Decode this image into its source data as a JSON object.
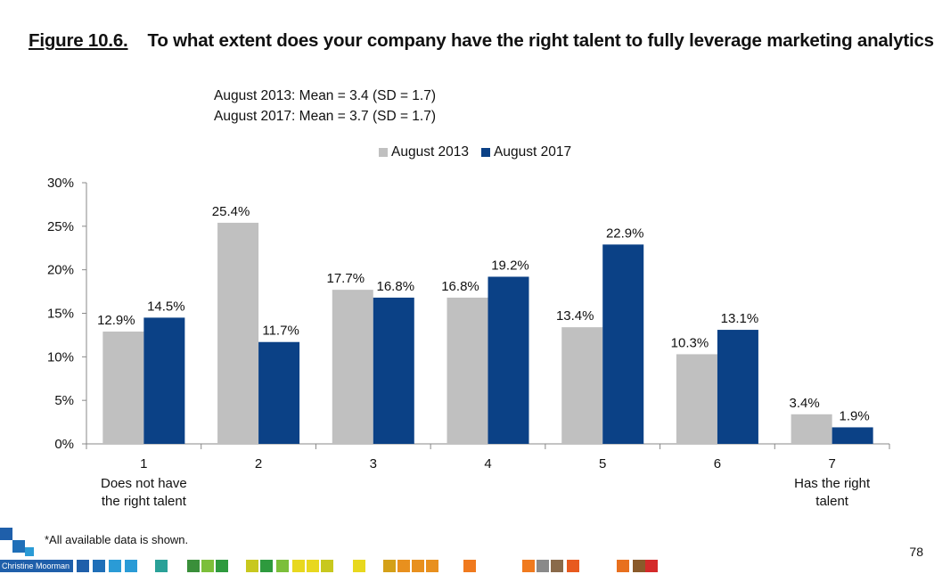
{
  "header": {
    "figure_label": "Figure 10.6.",
    "question": "To what extent does your company have the right talent to fully leverage marketing analytics?"
  },
  "stats": {
    "line1": "August 2013: Mean = 3.4 (SD = 1.7)",
    "line2": "August 2017: Mean = 3.7 (SD = 1.7)"
  },
  "chart_data": {
    "type": "bar",
    "categories": [
      "1",
      "2",
      "3",
      "4",
      "5",
      "6",
      "7"
    ],
    "category_sublabels": [
      [
        "Does not have",
        "the right talent"
      ],
      [],
      [],
      [],
      [],
      [],
      [
        "Has the right",
        "talent"
      ]
    ],
    "series": [
      {
        "name": "August 2013",
        "color": "#c0c0c0",
        "values": [
          12.9,
          25.4,
          17.7,
          16.8,
          13.4,
          10.3,
          3.4
        ],
        "labels": [
          "12.9%",
          "25.4%",
          "17.7%",
          "16.8%",
          "13.4%",
          "10.3%",
          "3.4%"
        ]
      },
      {
        "name": "August 2017",
        "color": "#0b4186",
        "values": [
          14.5,
          11.7,
          16.8,
          19.2,
          22.9,
          13.1,
          1.9
        ],
        "labels": [
          "14.5%",
          "11.7%",
          "16.8%",
          "19.2%",
          "22.9%",
          "13.1%",
          "1.9%"
        ]
      }
    ],
    "ylim": [
      0,
      30
    ],
    "yticks": [
      0,
      5,
      10,
      15,
      20,
      25,
      30
    ],
    "ytick_labels": [
      "0%",
      "5%",
      "10%",
      "15%",
      "20%",
      "25%",
      "30%"
    ],
    "grid": false,
    "legend_position": "top-center"
  },
  "footer": {
    "note": "*All available data is shown.",
    "brand": "Christine Moorman",
    "page_number": "78"
  },
  "decor": {
    "strip_colors": [
      "#1f5faa",
      "#1f6fb8",
      "#2a9bd6",
      "#2a9bd6",
      "#2aa198",
      "#3a8f3a",
      "#7cbf3a",
      "#2e9a3e",
      "#c8c81e",
      "#2e9a3e",
      "#7cbf3a",
      "#e8d81e",
      "#e8d81e",
      "#c8c81e",
      "#e8d81e",
      "#d4a018",
      "#e8901e",
      "#e8901e",
      "#e8901e",
      "#f07a1e",
      "#f07a1e",
      "#8a8a8a",
      "#8a6a4a",
      "#e85a1e",
      "#e8701e",
      "#8a5a2a",
      "#d42a2a"
    ],
    "corner_colors": [
      "#1f5faa",
      "#1f6fb8",
      "#2a9bd6"
    ]
  }
}
